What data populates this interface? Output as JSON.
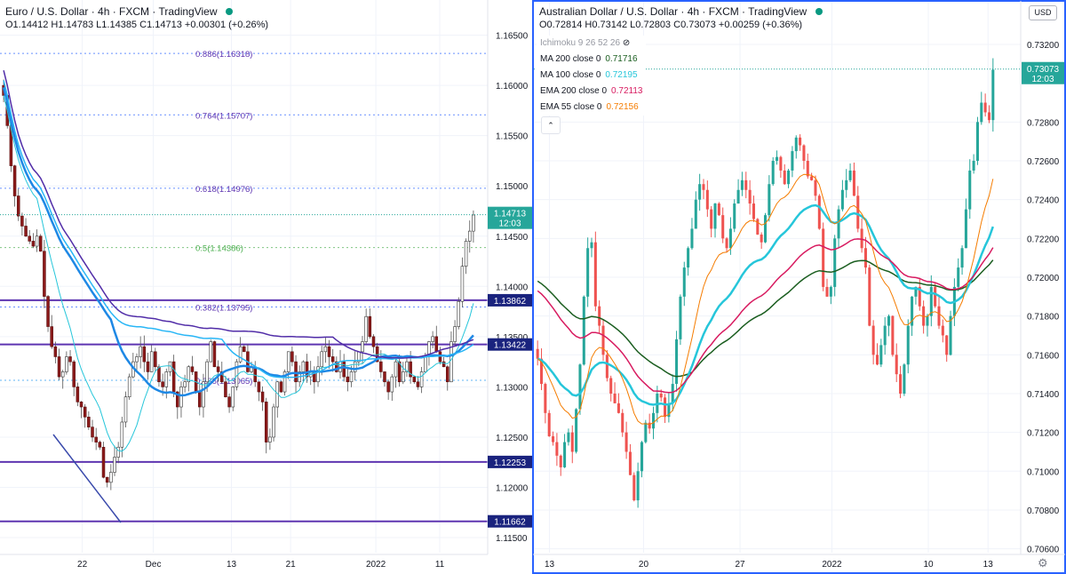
{
  "left": {
    "title": "Euro / U.S. Dollar · 4h · FXCM · TradingView",
    "ohlc": {
      "o": "O1.14412",
      "h": "H1.14783",
      "l": "L1.14385",
      "c": "C1.14713",
      "chg": "+0.00301 (+0.26%)"
    },
    "price_ticks": [
      "1.16500",
      "1.16000",
      "1.15500",
      "1.15000",
      "1.14500",
      "1.14000",
      "1.13500",
      "1.13000",
      "1.12500",
      "1.12000",
      "1.11500"
    ],
    "time_ticks": [
      "22",
      "Dec",
      "13",
      "21",
      "2022",
      "11"
    ],
    "last_price": "1.14713",
    "countdown": "12:03",
    "hlines": [
      {
        "label": "1.13862",
        "value": 1.13862
      },
      {
        "label": "1.13422",
        "value": 1.13422
      },
      {
        "label": "1.12253",
        "value": 1.12253
      },
      {
        "label": "1.11662",
        "value": 1.11662
      }
    ],
    "fib": [
      {
        "label": "0.886(1.16318)",
        "value": 1.16318
      },
      {
        "label": "0.764(1.15707)",
        "value": 1.15707
      },
      {
        "label": "0.618(1.14976)",
        "value": 1.14976
      },
      {
        "label": "0.5(1.14386)",
        "value": 1.14386
      },
      {
        "label": "0.382(1.13795)",
        "value": 1.13795
      },
      {
        "label": "0.236(1.13065)",
        "value": 1.13065
      }
    ]
  },
  "right": {
    "title": "Australian Dollar / U.S. Dollar · 4h · FXCM · TradingView",
    "ohlc": {
      "o": "O0.72814",
      "h": "H0.73142",
      "l": "L0.72803",
      "c": "C0.73073",
      "chg": "+0.00259 (+0.36%)"
    },
    "indicators": [
      {
        "label": "Ichimoku 9 26 52 26",
        "value": "",
        "color": "#9598a1"
      },
      {
        "label": "MA 200 close 0",
        "value": "0.71716",
        "color": "#1b5e20"
      },
      {
        "label": "MA 100 close 0",
        "value": "0.72195",
        "color": "#26c6da"
      },
      {
        "label": "EMA 200 close 0",
        "value": "0.72113",
        "color": "#d81b60"
      },
      {
        "label": "EMA 55 close 0",
        "value": "0.72156",
        "color": "#f57c00"
      }
    ],
    "price_ticks": [
      "0.73200",
      "0.72800",
      "0.72600",
      "0.72400",
      "0.72200",
      "0.72000",
      "0.71800",
      "0.71600",
      "0.71400",
      "0.71200",
      "0.71000",
      "0.70800",
      "0.70600"
    ],
    "time_ticks": [
      "13",
      "20",
      "27",
      "2022",
      "10",
      "13"
    ],
    "last_price": "0.73073",
    "countdown": "12:03",
    "currency_button": "USD"
  },
  "colors": {
    "up": "#26a69a",
    "down": "#ef5350",
    "hline": "#5e35b1",
    "fib": "#7e57c2"
  },
  "chart_data": [
    {
      "type": "candlestick",
      "title": "Euro / U.S. Dollar · 4h · FXCM · TradingView",
      "ylim": [
        1.1135,
        1.1685
      ],
      "x_ticks": [
        "22",
        "Dec",
        "13",
        "21",
        "2022",
        "11"
      ],
      "close_series": [
        1.159,
        1.156,
        1.152,
        1.149,
        1.147,
        1.146,
        1.145,
        1.1445,
        1.144,
        1.145,
        1.1435,
        1.139,
        1.136,
        1.134,
        1.133,
        1.131,
        1.1315,
        1.133,
        1.1325,
        1.13,
        1.1285,
        1.128,
        1.127,
        1.126,
        1.125,
        1.1245,
        1.124,
        1.121,
        1.1205,
        1.1215,
        1.123,
        1.124,
        1.1265,
        1.129,
        1.131,
        1.1325,
        1.133,
        1.134,
        1.1325,
        1.1315,
        1.1335,
        1.132,
        1.1305,
        1.13,
        1.1315,
        1.1325,
        1.1295,
        1.128,
        1.13,
        1.1305,
        1.132,
        1.1315,
        1.1295,
        1.128,
        1.1305,
        1.1325,
        1.1345,
        1.132,
        1.1315,
        1.1305,
        1.129,
        1.128,
        1.13,
        1.1325,
        1.134,
        1.1335,
        1.1315,
        1.132,
        1.1305,
        1.1295,
        1.1285,
        1.1245,
        1.125,
        1.128,
        1.1305,
        1.1295,
        1.1315,
        1.1335,
        1.1325,
        1.1305,
        1.1315,
        1.1325,
        1.131,
        1.1315,
        1.1305,
        1.132,
        1.1335,
        1.134,
        1.133,
        1.1325,
        1.1315,
        1.1325,
        1.131,
        1.1305,
        1.1315,
        1.1325,
        1.1335,
        1.1345,
        1.137,
        1.135,
        1.134,
        1.1325,
        1.1315,
        1.1305,
        1.1295,
        1.131,
        1.1325,
        1.1305,
        1.1315,
        1.1325,
        1.131,
        1.1305,
        1.13,
        1.1315,
        1.133,
        1.1345,
        1.135,
        1.1335,
        1.1325,
        1.132,
        1.1305,
        1.1345,
        1.136,
        1.1385,
        1.142,
        1.1445,
        1.1455,
        1.1471
      ],
      "hlines": [
        1.13862,
        1.13422,
        1.12253,
        1.11662
      ],
      "fib_levels": [
        1.16318,
        1.15707,
        1.14976,
        1.14386,
        1.13795,
        1.13065
      ]
    },
    {
      "type": "candlestick",
      "title": "Australian Dollar / U.S. Dollar · 4h · FXCM · TradingView",
      "ylim": [
        0.7058,
        0.7342
      ],
      "x_ticks": [
        "13",
        "20",
        "27",
        "2022",
        "10",
        "13"
      ],
      "close_series": [
        0.7158,
        0.7145,
        0.713,
        0.7118,
        0.7115,
        0.7108,
        0.7102,
        0.7115,
        0.712,
        0.711,
        0.7132,
        0.7155,
        0.719,
        0.7215,
        0.7218,
        0.7185,
        0.7175,
        0.716,
        0.7148,
        0.714,
        0.7135,
        0.713,
        0.712,
        0.711,
        0.7098,
        0.7085,
        0.71,
        0.7115,
        0.7125,
        0.7122,
        0.713,
        0.714,
        0.7138,
        0.7128,
        0.7135,
        0.7145,
        0.7168,
        0.719,
        0.7205,
        0.7215,
        0.7225,
        0.724,
        0.7248,
        0.7245,
        0.7235,
        0.7225,
        0.7238,
        0.7232,
        0.722,
        0.7215,
        0.7225,
        0.7238,
        0.7245,
        0.725,
        0.7245,
        0.7238,
        0.723,
        0.7222,
        0.7218,
        0.7232,
        0.7248,
        0.726,
        0.7262,
        0.7255,
        0.7248,
        0.7255,
        0.7265,
        0.7272,
        0.7268,
        0.726,
        0.7252,
        0.725,
        0.7242,
        0.7225,
        0.7195,
        0.719,
        0.7195,
        0.722,
        0.7235,
        0.7245,
        0.725,
        0.7255,
        0.7242,
        0.7225,
        0.7215,
        0.7205,
        0.7175,
        0.716,
        0.7155,
        0.7165,
        0.7175,
        0.718,
        0.716,
        0.715,
        0.714,
        0.7155,
        0.7175,
        0.719,
        0.7195,
        0.7185,
        0.7175,
        0.718,
        0.7195,
        0.7185,
        0.7175,
        0.717,
        0.716,
        0.718,
        0.7195,
        0.7205,
        0.7215,
        0.7235,
        0.7255,
        0.726,
        0.728,
        0.729,
        0.7285,
        0.7281,
        0.7307
      ],
      "series_names": [
        "MA 200 close 0",
        "MA 100 close 0",
        "EMA 200 close 0",
        "EMA 55 close 0"
      ]
    }
  ]
}
